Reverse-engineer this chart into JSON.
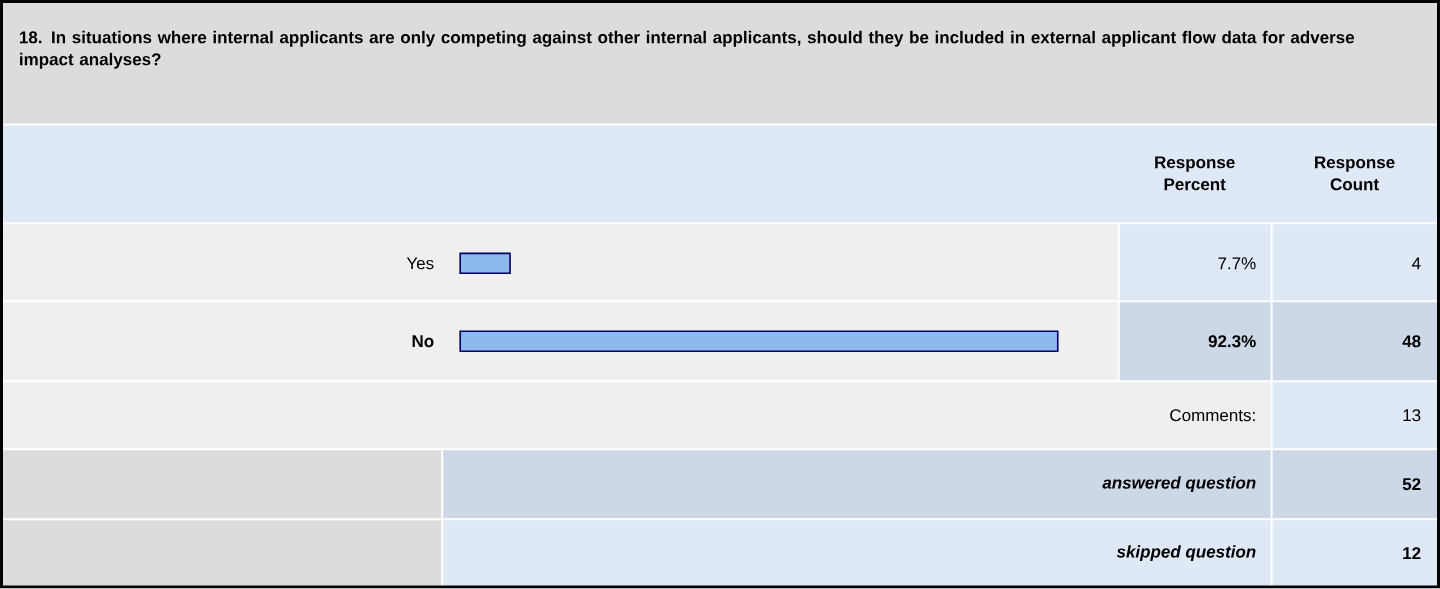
{
  "chart_data": {
    "type": "bar",
    "orientation": "horizontal",
    "title": "18. In situations where internal applicants are only competing against other internal applicants, should they be included in external applicant flow data for adverse impact analyses?",
    "categories": [
      "Yes",
      "No"
    ],
    "values": [
      7.7,
      92.3
    ],
    "value_labels": [
      "7.7%",
      "92.3%"
    ],
    "color": "#8cb8ec",
    "tick_labels": "y",
    "annotations": [
      "Response Percent",
      "Response Count",
      "4",
      "48",
      "Comments:",
      "13",
      "answered question",
      "52",
      "skipped question",
      "12"
    ]
  }
}
